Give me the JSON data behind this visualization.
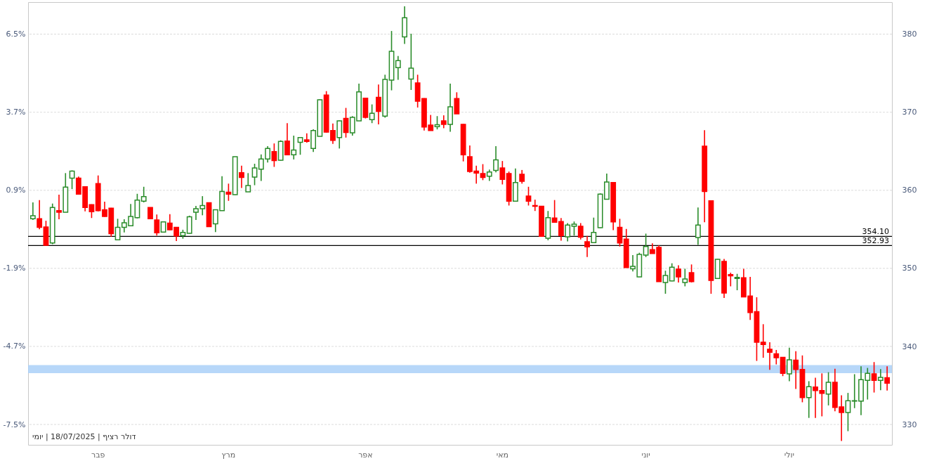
{
  "chart_data": {
    "type": "candlestick",
    "categories": [
      null,
      null,
      null,
      null,
      null,
      null,
      null,
      null,
      null,
      null,
      "פבר",
      null,
      null,
      null,
      null,
      null,
      null,
      null,
      null,
      null,
      null,
      null,
      null,
      null,
      null,
      null,
      null,
      null,
      null,
      null,
      "מרץ",
      null,
      null,
      null,
      null,
      null,
      null,
      null,
      null,
      null,
      null,
      null,
      null,
      null,
      null,
      null,
      null,
      null,
      null,
      null,
      null,
      "אפר",
      null,
      null,
      null,
      null,
      null,
      null,
      null,
      null,
      null,
      null,
      null,
      null,
      null,
      null,
      null,
      null,
      null,
      null,
      null,
      null,
      "מאי",
      null,
      null,
      null,
      null,
      null,
      null,
      null,
      null,
      null,
      null,
      null,
      null,
      null,
      null,
      null,
      null,
      null,
      null,
      null,
      null,
      null,
      "יוני",
      null,
      null,
      null,
      null,
      null,
      null,
      null,
      null,
      null,
      null,
      null,
      null,
      null,
      null,
      null,
      null,
      null,
      null,
      null,
      null,
      null,
      "יולי",
      null,
      null,
      null,
      null,
      null,
      null,
      null,
      null,
      null,
      null,
      null,
      null,
      null,
      null,
      null
    ],
    "series": [
      {
        "axis": "y2",
        "ohlc": [
          [
            356.35,
            358.45,
            356.2,
            356.75
          ],
          [
            356.35,
            358.75,
            355.0,
            355.25
          ],
          [
            355.3,
            356.1,
            352.9,
            352.95
          ],
          [
            353.25,
            358.3,
            353.1,
            357.8
          ],
          [
            357.4,
            359.45,
            356.3,
            357.2
          ],
          [
            357.2,
            362.2,
            357.2,
            360.4
          ],
          [
            361.55,
            362.55,
            360.15,
            362.45
          ],
          [
            361.55,
            361.75,
            359.45,
            359.5
          ],
          [
            360.45,
            360.5,
            357.3,
            357.8
          ],
          [
            358.15,
            358.2,
            356.45,
            357.25
          ],
          [
            360.85,
            361.9,
            357.3,
            357.4
          ],
          [
            357.5,
            358.55,
            356.6,
            356.65
          ],
          [
            357.7,
            357.75,
            354.05,
            354.45
          ],
          [
            353.65,
            356.35,
            353.6,
            355.25
          ],
          [
            355.25,
            356.3,
            354.6,
            355.85
          ],
          [
            355.45,
            358.25,
            355.4,
            356.65
          ],
          [
            356.5,
            359.55,
            356.4,
            358.75
          ],
          [
            358.6,
            360.45,
            358.45,
            359.2
          ],
          [
            357.8,
            357.8,
            356.3,
            356.35
          ],
          [
            356.2,
            356.9,
            354.2,
            354.55
          ],
          [
            354.65,
            355.95,
            354.6,
            355.95
          ],
          [
            355.8,
            356.95,
            354.9,
            354.95
          ],
          [
            355.25,
            355.3,
            353.5,
            354.15
          ],
          [
            354.2,
            354.95,
            353.8,
            354.6
          ],
          [
            354.5,
            356.75,
            354.45,
            356.6
          ],
          [
            357.2,
            358.0,
            356.2,
            357.65
          ],
          [
            357.65,
            359.25,
            356.8,
            358.05
          ],
          [
            358.4,
            358.45,
            355.3,
            355.35
          ],
          [
            355.7,
            357.5,
            354.65,
            357.5
          ],
          [
            357.4,
            361.8,
            357.4,
            359.85
          ],
          [
            359.75,
            360.85,
            358.65,
            359.5
          ],
          [
            359.45,
            364.3,
            359.4,
            364.3
          ],
          [
            362.25,
            363.15,
            360.3,
            361.65
          ],
          [
            359.8,
            362.2,
            359.8,
            360.6
          ],
          [
            361.7,
            363.4,
            360.65,
            362.85
          ],
          [
            362.7,
            364.6,
            361.2,
            364.0
          ],
          [
            364.0,
            365.65,
            363.55,
            365.35
          ],
          [
            364.95,
            366.0,
            363.0,
            363.8
          ],
          [
            363.85,
            366.4,
            363.8,
            366.25
          ],
          [
            366.3,
            368.6,
            364.5,
            364.55
          ],
          [
            364.55,
            367.0,
            363.95,
            365.15
          ],
          [
            366.15,
            366.75,
            364.55,
            366.75
          ],
          [
            366.45,
            367.3,
            366.1,
            366.25
          ],
          [
            365.35,
            367.8,
            364.9,
            367.65
          ],
          [
            366.9,
            371.65,
            366.9,
            371.6
          ],
          [
            372.2,
            372.7,
            367.4,
            367.45
          ],
          [
            367.65,
            368.55,
            365.95,
            366.4
          ],
          [
            366.75,
            368.95,
            365.35,
            368.9
          ],
          [
            369.2,
            370.55,
            366.75,
            367.4
          ],
          [
            367.35,
            369.5,
            367.0,
            369.35
          ],
          [
            368.9,
            373.65,
            368.9,
            372.6
          ],
          [
            371.8,
            371.85,
            369.2,
            369.35
          ],
          [
            369.05,
            371.0,
            368.6,
            369.85
          ],
          [
            371.9,
            373.55,
            368.45,
            370.1
          ],
          [
            369.5,
            374.8,
            369.3,
            374.2
          ],
          [
            374.1,
            380.4,
            372.8,
            377.8
          ],
          [
            375.7,
            377.2,
            374.15,
            376.6
          ],
          [
            379.65,
            383.55,
            378.75,
            382.1
          ],
          [
            374.25,
            380.05,
            372.85,
            375.65
          ],
          [
            373.75,
            374.8,
            370.6,
            371.4
          ],
          [
            371.75,
            371.8,
            367.65,
            368.1
          ],
          [
            368.35,
            369.65,
            367.65,
            367.65
          ],
          [
            368.15,
            369.5,
            367.8,
            368.4
          ],
          [
            368.9,
            369.6,
            367.95,
            368.45
          ],
          [
            368.45,
            373.65,
            367.5,
            370.7
          ],
          [
            371.75,
            372.55,
            369.8,
            369.8
          ],
          [
            368.45,
            368.5,
            363.7,
            364.55
          ],
          [
            364.3,
            365.75,
            362.25,
            362.4
          ],
          [
            362.45,
            363.15,
            360.85,
            362.2
          ],
          [
            362.15,
            363.35,
            361.3,
            361.65
          ],
          [
            361.8,
            362.65,
            361.2,
            362.35
          ],
          [
            362.55,
            365.65,
            362.3,
            363.9
          ],
          [
            362.85,
            363.75,
            360.75,
            361.4
          ],
          [
            362.15,
            362.4,
            358.05,
            358.6
          ],
          [
            358.6,
            362.8,
            358.6,
            361.0
          ],
          [
            362.05,
            362.6,
            360.85,
            361.15
          ],
          [
            359.25,
            360.45,
            358.05,
            358.6
          ],
          [
            358.05,
            358.8,
            357.35,
            357.95
          ],
          [
            357.95,
            358.0,
            354.05,
            354.1
          ],
          [
            353.85,
            357.35,
            353.6,
            356.5
          ],
          [
            356.45,
            358.75,
            355.85,
            355.9
          ],
          [
            356.0,
            356.45,
            353.55,
            354.2
          ],
          [
            354.05,
            355.8,
            353.45,
            355.55
          ],
          [
            355.4,
            356.0,
            354.2,
            355.65
          ],
          [
            355.4,
            355.8,
            353.7,
            354.0
          ],
          [
            353.4,
            354.15,
            351.45,
            352.75
          ],
          [
            353.3,
            356.5,
            353.3,
            354.6
          ],
          [
            355.2,
            359.6,
            355.15,
            359.5
          ],
          [
            358.85,
            362.15,
            358.8,
            361.05
          ],
          [
            361.0,
            361.05,
            354.9,
            355.95
          ],
          [
            355.25,
            356.35,
            352.8,
            353.25
          ],
          [
            353.75,
            355.05,
            350.1,
            350.1
          ],
          [
            349.95,
            351.7,
            349.6,
            350.25
          ],
          [
            348.9,
            352.0,
            348.9,
            351.8
          ],
          [
            351.7,
            354.45,
            351.45,
            352.8
          ],
          [
            352.4,
            353.2,
            351.9,
            351.9
          ],
          [
            352.7,
            352.95,
            348.3,
            348.3
          ],
          [
            348.2,
            349.7,
            346.75,
            349.1
          ],
          [
            348.4,
            350.65,
            348.35,
            350.15
          ],
          [
            349.9,
            350.4,
            348.2,
            348.9
          ],
          [
            348.2,
            349.95,
            347.7,
            348.65
          ],
          [
            349.45,
            350.5,
            348.2,
            348.3
          ],
          [
            353.95,
            357.8,
            353.0,
            355.55
          ],
          [
            365.65,
            367.7,
            355.9,
            359.85
          ],
          [
            358.65,
            358.7,
            346.75,
            348.45
          ],
          [
            348.7,
            351.2,
            348.65,
            351.15
          ],
          [
            350.9,
            351.2,
            346.2,
            346.85
          ],
          [
            349.2,
            349.45,
            347.7,
            349.05
          ],
          [
            348.7,
            349.3,
            347.2,
            348.85
          ],
          [
            348.8,
            349.95,
            346.3,
            346.35
          ],
          [
            346.45,
            348.9,
            343.4,
            344.35
          ],
          [
            344.45,
            346.3,
            338.15,
            340.55
          ],
          [
            340.55,
            342.85,
            338.55,
            340.25
          ],
          [
            339.65,
            340.55,
            337.0,
            339.25
          ],
          [
            339.05,
            339.55,
            337.7,
            338.55
          ],
          [
            338.6,
            338.65,
            336.2,
            336.55
          ],
          [
            336.5,
            339.85,
            335.55,
            338.3
          ],
          [
            338.25,
            339.4,
            334.55,
            337.05
          ],
          [
            337.05,
            338.85,
            332.85,
            333.45
          ],
          [
            333.45,
            335.55,
            330.85,
            334.85
          ],
          [
            334.8,
            336.0,
            330.85,
            334.35
          ],
          [
            334.35,
            336.55,
            331.05,
            334.0
          ],
          [
            333.9,
            336.7,
            332.45,
            335.4
          ],
          [
            335.4,
            337.15,
            331.7,
            332.2
          ],
          [
            332.25,
            333.75,
            327.9,
            331.55
          ],
          [
            331.55,
            334.05,
            329.15,
            333.05
          ],
          [
            333.0,
            336.45,
            332.1,
            333.05
          ],
          [
            333.0,
            337.45,
            331.2,
            335.75
          ],
          [
            335.65,
            337.25,
            333.2,
            336.55
          ],
          [
            336.5,
            338.0,
            334.1,
            335.65
          ],
          [
            335.65,
            337.1,
            334.4,
            336.05
          ],
          [
            336.0,
            337.45,
            334.35,
            335.3
          ]
        ],
        "colors": [
          "#2a8c2a",
          "#ff0000",
          "#ff0000",
          "#2a8c2a",
          "#ff0000",
          "#2a8c2a",
          "#2a8c2a",
          "#ff0000",
          "#ff0000",
          "#ff0000",
          "#ff0000",
          "#ff0000",
          "#ff0000",
          "#2a8c2a",
          "#2a8c2a",
          "#2a8c2a",
          "#2a8c2a",
          "#2a8c2a",
          "#ff0000",
          "#ff0000",
          "#2a8c2a",
          "#ff0000",
          "#ff0000",
          "#2a8c2a",
          "#2a8c2a",
          "#2a8c2a",
          "#2a8c2a",
          "#ff0000",
          "#2a8c2a",
          "#2a8c2a",
          "#ff0000",
          "#2a8c2a",
          "#ff0000",
          "#2a8c2a",
          "#2a8c2a",
          "#2a8c2a",
          "#2a8c2a",
          "#ff0000",
          "#2a8c2a",
          "#ff0000",
          "#2a8c2a",
          "#2a8c2a",
          "#ff0000",
          "#2a8c2a",
          "#2a8c2a",
          "#ff0000",
          "#ff0000",
          "#2a8c2a",
          "#ff0000",
          "#2a8c2a",
          "#2a8c2a",
          "#ff0000",
          "#2a8c2a",
          "#ff0000",
          "#2a8c2a",
          "#2a8c2a",
          "#2a8c2a",
          "#2a8c2a",
          "#2a8c2a",
          "#ff0000",
          "#ff0000",
          "#ff0000",
          "#2a8c2a",
          "#ff0000",
          "#2a8c2a",
          "#ff0000",
          "#ff0000",
          "#ff0000",
          "#ff0000",
          "#ff0000",
          "#2a8c2a",
          "#2a8c2a",
          "#ff0000",
          "#ff0000",
          "#2a8c2a",
          "#ff0000",
          "#ff0000",
          "#ff0000",
          "#ff0000",
          "#2a8c2a",
          "#ff0000",
          "#ff0000",
          "#2a8c2a",
          "#2a8c2a",
          "#ff0000",
          "#ff0000",
          "#2a8c2a",
          "#2a8c2a",
          "#2a8c2a",
          "#ff0000",
          "#ff0000",
          "#ff0000",
          "#2a8c2a",
          "#2a8c2a",
          "#2a8c2a",
          "#ff0000",
          "#ff0000",
          "#2a8c2a",
          "#2a8c2a",
          "#ff0000",
          "#2a8c2a",
          "#ff0000",
          "#2a8c2a",
          "#ff0000",
          "#ff0000",
          "#2a8c2a",
          "#ff0000",
          "#ff0000",
          "#2a8c2a",
          "#ff0000",
          "#ff0000",
          "#ff0000",
          "#ff0000",
          "#ff0000",
          "#ff0000",
          "#ff0000",
          "#2a8c2a",
          "#ff0000",
          "#ff0000",
          "#2a8c2a",
          "#ff0000",
          "#ff0000",
          "#2a8c2a",
          "#ff0000",
          "#ff0000",
          "#2a8c2a",
          "#2a8c2a",
          "#2a8c2a",
          "#2a8c2a",
          "#ff0000",
          "#2a8c2a",
          "#ff0000"
        ]
      }
    ],
    "ylim": [
      -8.23,
      7.65
    ],
    "yticks": [
      {
        "value": -7.5,
        "label": "-7.5%"
      },
      {
        "value": -4.7,
        "label": "-4.7%"
      },
      {
        "value": -1.9,
        "label": "-1.9%"
      },
      {
        "value": 0.9,
        "label": "0.9%"
      },
      {
        "value": 3.7,
        "label": "3.7%"
      },
      {
        "value": 6.5,
        "label": "6.5%"
      }
    ],
    "y2lim": [
      327.4,
      384.1
    ],
    "y2ticks": [
      330,
      340,
      350,
      360,
      370,
      380
    ],
    "grid": "y",
    "ref_lines": [
      {
        "axis": "y2",
        "value": 354.1,
        "label": "354.10",
        "color": "#000000"
      },
      {
        "axis": "y2",
        "value": 352.93,
        "label": "352.93",
        "color": "#000000"
      }
    ],
    "bands": [
      {
        "axis": "y2",
        "from": 336.57,
        "to": 337.62,
        "color": "#aad0f8"
      }
    ],
    "annotations": [
      "דולר רציף | 18/07/2025 | יומי"
    ]
  }
}
